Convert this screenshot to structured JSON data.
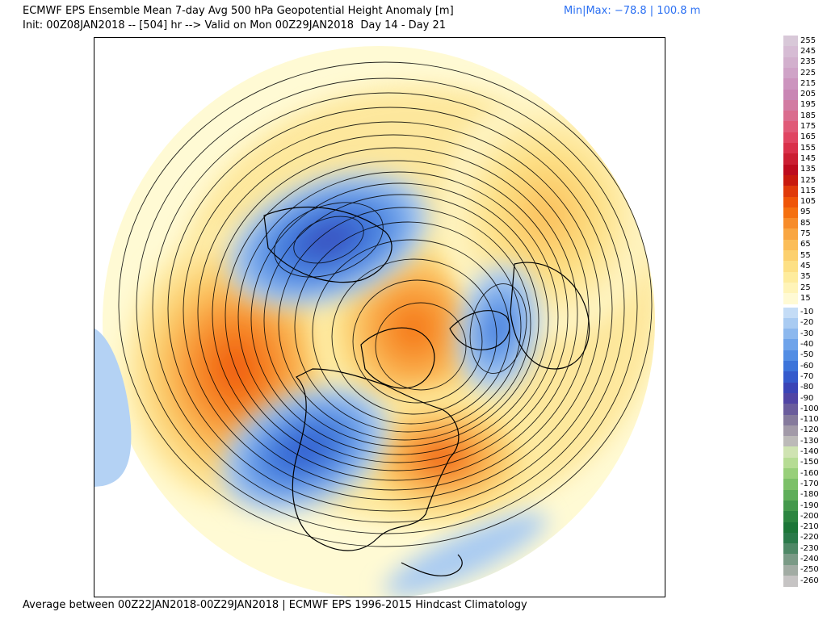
{
  "header": {
    "title": "ECMWF EPS Ensemble Mean 7-day Avg 500 hPa Geopotential Height Anomaly [m]",
    "minmax": "Min|Max: −78.8 | 100.8 m",
    "subtitle": "Init: 00Z08JAN2018 -- [504] hr --> Valid on Mon 00Z29JAN2018  Day 14 - Day 21"
  },
  "footer": {
    "text": "Average between 00Z22JAN2018-00Z29JAN2018 | ECMWF EPS 1996-2015 Hindcast Climatology"
  },
  "map": {
    "projection": "north-polar-stereographic",
    "anomaly_regions": [
      {
        "sign": "positive",
        "area": "North Pacific / Gulf of Alaska"
      },
      {
        "sign": "positive",
        "area": "Arctic / Greenland / Baffin"
      },
      {
        "sign": "positive",
        "area": "Eastern North America / Western Atlantic"
      },
      {
        "sign": "positive",
        "area": "Siberia / Northern Asia"
      },
      {
        "sign": "negative",
        "area": "Western North America"
      },
      {
        "sign": "negative",
        "area": "Eastern Siberia / Sea of Okhotsk"
      },
      {
        "sign": "negative",
        "area": "Scandinavia / Northern Europe"
      },
      {
        "sign": "negative",
        "area": "Subtropical Atlantic"
      }
    ]
  },
  "colorbar": {
    "positive": [
      {
        "label": "255",
        "color": "#d8c8d8"
      },
      {
        "label": "245",
        "color": "#d6bcd4"
      },
      {
        "label": "235",
        "color": "#d2b0cd"
      },
      {
        "label": "225",
        "color": "#cfa3c7"
      },
      {
        "label": "215",
        "color": "#cc94be"
      },
      {
        "label": "205",
        "color": "#c986b4"
      },
      {
        "label": "195",
        "color": "#d27ba2"
      },
      {
        "label": "185",
        "color": "#da6c8e"
      },
      {
        "label": "175",
        "color": "#e05a78"
      },
      {
        "label": "165",
        "color": "#e04562"
      },
      {
        "label": "155",
        "color": "#d9304a"
      },
      {
        "label": "145",
        "color": "#cb1e32"
      },
      {
        "label": "135",
        "color": "#bd0c1e"
      },
      {
        "label": "125",
        "color": "#c81a0e"
      },
      {
        "label": "115",
        "color": "#e03a0a"
      },
      {
        "label": "105",
        "color": "#ef5508"
      },
      {
        "label": "95",
        "color": "#f57010"
      },
      {
        "label": "85",
        "color": "#f78c2a"
      },
      {
        "label": "75",
        "color": "#f9a642"
      },
      {
        "label": "65",
        "color": "#fbbd58"
      },
      {
        "label": "55",
        "color": "#fcd06e"
      },
      {
        "label": "45",
        "color": "#fde085"
      },
      {
        "label": "35",
        "color": "#feec9d"
      },
      {
        "label": "25",
        "color": "#fff4b8"
      },
      {
        "label": "15",
        "color": "#fffad4"
      }
    ],
    "negative": [
      {
        "label": "-10",
        "color": "#c4dcf6"
      },
      {
        "label": "-20",
        "color": "#a9cbf2"
      },
      {
        "label": "-30",
        "color": "#8cb8ee"
      },
      {
        "label": "-40",
        "color": "#6ea3ea"
      },
      {
        "label": "-50",
        "color": "#528de4"
      },
      {
        "label": "-60",
        "color": "#3c74da"
      },
      {
        "label": "-70",
        "color": "#345acc"
      },
      {
        "label": "-80",
        "color": "#3a44b6"
      },
      {
        "label": "-90",
        "color": "#5044a4"
      },
      {
        "label": "-100",
        "color": "#6a5c9c"
      },
      {
        "label": "-110",
        "color": "#857a9c"
      },
      {
        "label": "-120",
        "color": "#a29aa8"
      },
      {
        "label": "-130",
        "color": "#bcbab8"
      },
      {
        "label": "-140",
        "color": "#cfe3b2"
      },
      {
        "label": "-150",
        "color": "#b6dc94"
      },
      {
        "label": "-160",
        "color": "#98cf7a"
      },
      {
        "label": "-170",
        "color": "#7cc068"
      },
      {
        "label": "-180",
        "color": "#5fae5a"
      },
      {
        "label": "-190",
        "color": "#44994c"
      },
      {
        "label": "-200",
        "color": "#2c8540"
      },
      {
        "label": "-210",
        "color": "#1c7638"
      },
      {
        "label": "-220",
        "color": "#2a7a4a"
      },
      {
        "label": "-230",
        "color": "#4e8866"
      },
      {
        "label": "-240",
        "color": "#7a9a86"
      },
      {
        "label": "-250",
        "color": "#a2aca4"
      },
      {
        "label": "-260",
        "color": "#c6c4c4"
      }
    ]
  }
}
